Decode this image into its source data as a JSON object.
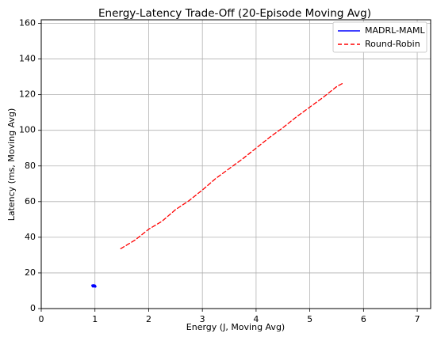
{
  "chart_data": {
    "type": "line",
    "title": "Energy-Latency Trade-Off (20-Episode Moving Avg)",
    "xlabel": "Energy (J, Moving Avg)",
    "ylabel": "Latency (ms, Moving Avg)",
    "xlim": [
      0,
      7.25
    ],
    "ylim": [
      0,
      162
    ],
    "xticks": [
      0,
      1,
      2,
      3,
      4,
      5,
      6,
      7
    ],
    "yticks": [
      0,
      20,
      40,
      60,
      80,
      100,
      120,
      140,
      160
    ],
    "grid": true,
    "legend_position": "top-right",
    "series": [
      {
        "name": "MADRL-MAML",
        "color": "#0000ff",
        "style": "solid",
        "points": [
          [
            0.955,
            12.9
          ],
          [
            0.965,
            12.5
          ],
          [
            0.975,
            13.0
          ],
          [
            0.985,
            12.6
          ],
          [
            0.995,
            12.8
          ],
          [
            1.005,
            12.4
          ]
        ]
      },
      {
        "name": "Round-Robin",
        "color": "#ff0000",
        "style": "dashed",
        "points": [
          [
            1.48,
            33.6
          ],
          [
            1.75,
            38.5
          ],
          [
            2.0,
            44.5
          ],
          [
            2.25,
            49.0
          ],
          [
            2.5,
            55.5
          ],
          [
            2.75,
            60.5
          ],
          [
            3.0,
            66.5
          ],
          [
            3.25,
            73.0
          ],
          [
            3.5,
            78.5
          ],
          [
            3.75,
            84.0
          ],
          [
            4.0,
            90.0
          ],
          [
            4.25,
            96.0
          ],
          [
            4.5,
            101.5
          ],
          [
            4.75,
            107.5
          ],
          [
            5.0,
            113.0
          ],
          [
            5.25,
            118.5
          ],
          [
            5.5,
            124.5
          ],
          [
            5.62,
            126.5
          ]
        ]
      }
    ]
  }
}
